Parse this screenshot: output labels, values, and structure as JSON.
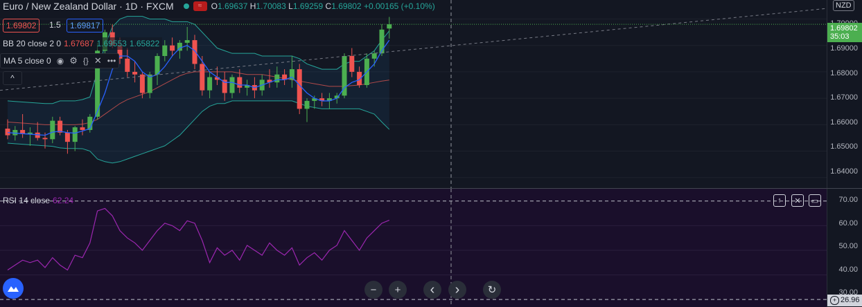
{
  "header": {
    "symbol_title": "Euro / New Zealand Dollar · 1D · FXCM",
    "ohlc_open_label": "O",
    "ohlc_open": "1.69637",
    "ohlc_high_label": "H",
    "ohlc_high": "1.70083",
    "ohlc_low_label": "L",
    "ohlc_low": "1.69259",
    "ohlc_close_label": "C",
    "ohlc_close": "1.69802",
    "ohlc_change": "+0.00165 (+0.10%)"
  },
  "trade": {
    "sell_price": "1.69802",
    "spread": "1.5",
    "buy_price": "1.69817"
  },
  "indicators": {
    "bb_label": "BB 20 close 2 0",
    "bb_val1": "1.67687",
    "bb_val2": "1.69553",
    "bb_val3": "1.65822",
    "ma_label": "MA 5 close 0",
    "rsi_label": "RSI 14 close",
    "rsi_value": "62.24"
  },
  "price_scale": {
    "currency": "NZD",
    "ticks": [
      "1.70000",
      "1.69000",
      "1.68000",
      "1.67000",
      "1.66000",
      "1.65000",
      "1.64000"
    ],
    "current_price": "1.69802",
    "countdown": "35:03"
  },
  "rsi_scale": {
    "ticks": [
      "70.00",
      "60.00",
      "50.00",
      "40.00",
      "30.00"
    ],
    "bottom_value": "26.96"
  },
  "controls": {
    "zoom_out": "−",
    "zoom_in": "+",
    "scroll_left": "‹",
    "scroll_right": "›",
    "reset": "↻",
    "collapse": "^"
  },
  "icons": [
    "eye-icon",
    "gear-icon",
    "braces-icon",
    "close-icon",
    "more-icon",
    "up-arrow-icon",
    "maximize-icon",
    "logo-icon",
    "plus-icon"
  ],
  "colors": {
    "up": "#26a69a",
    "up_candle": "#4caf50",
    "down": "#ef5350",
    "bb_line": "#26a69a",
    "ma_line": "#2962ff",
    "rsi_line": "#9c27b0",
    "bg": "#131722",
    "rsi_bg": "#1a0f2b"
  },
  "chart_data": {
    "type": "line",
    "candles": [
      {
        "o": 1.6585,
        "h": 1.662,
        "l": 1.6545,
        "c": 1.656
      },
      {
        "o": 1.656,
        "h": 1.6595,
        "l": 1.654,
        "c": 1.658
      },
      {
        "o": 1.658,
        "h": 1.664,
        "l": 1.655,
        "c": 1.6565
      },
      {
        "o": 1.6565,
        "h": 1.659,
        "l": 1.652,
        "c": 1.657
      },
      {
        "o": 1.657,
        "h": 1.661,
        "l": 1.654,
        "c": 1.655
      },
      {
        "o": 1.655,
        "h": 1.657,
        "l": 1.651,
        "c": 1.6545
      },
      {
        "o": 1.6545,
        "h": 1.663,
        "l": 1.653,
        "c": 1.6615
      },
      {
        "o": 1.6615,
        "h": 1.663,
        "l": 1.656,
        "c": 1.657
      },
      {
        "o": 1.657,
        "h": 1.658,
        "l": 1.649,
        "c": 1.6535
      },
      {
        "o": 1.6535,
        "h": 1.6595,
        "l": 1.65,
        "c": 1.659
      },
      {
        "o": 1.659,
        "h": 1.662,
        "l": 1.656,
        "c": 1.658
      },
      {
        "o": 1.658,
        "h": 1.664,
        "l": 1.657,
        "c": 1.663
      },
      {
        "o": 1.663,
        "h": 1.691,
        "l": 1.662,
        "c": 1.688
      },
      {
        "o": 1.688,
        "h": 1.696,
        "l": 1.684,
        "c": 1.695
      },
      {
        "o": 1.695,
        "h": 1.698,
        "l": 1.689,
        "c": 1.69
      },
      {
        "o": 1.69,
        "h": 1.693,
        "l": 1.683,
        "c": 1.685
      },
      {
        "o": 1.685,
        "h": 1.689,
        "l": 1.678,
        "c": 1.68
      },
      {
        "o": 1.68,
        "h": 1.684,
        "l": 1.676,
        "c": 1.679
      },
      {
        "o": 1.679,
        "h": 1.68,
        "l": 1.67,
        "c": 1.672
      },
      {
        "o": 1.672,
        "h": 1.68,
        "l": 1.67,
        "c": 1.679
      },
      {
        "o": 1.679,
        "h": 1.687,
        "l": 1.675,
        "c": 1.686
      },
      {
        "o": 1.686,
        "h": 1.692,
        "l": 1.684,
        "c": 1.69
      },
      {
        "o": 1.69,
        "h": 1.693,
        "l": 1.686,
        "c": 1.688
      },
      {
        "o": 1.688,
        "h": 1.692,
        "l": 1.685,
        "c": 1.691
      },
      {
        "o": 1.691,
        "h": 1.697,
        "l": 1.688,
        "c": 1.692
      },
      {
        "o": 1.692,
        "h": 1.694,
        "l": 1.681,
        "c": 1.683
      },
      {
        "o": 1.683,
        "h": 1.686,
        "l": 1.671,
        "c": 1.673
      },
      {
        "o": 1.673,
        "h": 1.68,
        "l": 1.67,
        "c": 1.678
      },
      {
        "o": 1.678,
        "h": 1.682,
        "l": 1.675,
        "c": 1.677
      },
      {
        "o": 1.677,
        "h": 1.68,
        "l": 1.669,
        "c": 1.672
      },
      {
        "o": 1.672,
        "h": 1.679,
        "l": 1.67,
        "c": 1.678
      },
      {
        "o": 1.678,
        "h": 1.681,
        "l": 1.672,
        "c": 1.674
      },
      {
        "o": 1.674,
        "h": 1.677,
        "l": 1.671,
        "c": 1.675
      },
      {
        "o": 1.675,
        "h": 1.678,
        "l": 1.67,
        "c": 1.673
      },
      {
        "o": 1.673,
        "h": 1.679,
        "l": 1.671,
        "c": 1.677
      },
      {
        "o": 1.677,
        "h": 1.681,
        "l": 1.674,
        "c": 1.676
      },
      {
        "o": 1.676,
        "h": 1.682,
        "l": 1.674,
        "c": 1.679
      },
      {
        "o": 1.679,
        "h": 1.681,
        "l": 1.675,
        "c": 1.677
      },
      {
        "o": 1.677,
        "h": 1.686,
        "l": 1.674,
        "c": 1.681
      },
      {
        "o": 1.681,
        "h": 1.683,
        "l": 1.664,
        "c": 1.666
      },
      {
        "o": 1.666,
        "h": 1.67,
        "l": 1.661,
        "c": 1.669
      },
      {
        "o": 1.669,
        "h": 1.671,
        "l": 1.666,
        "c": 1.67
      },
      {
        "o": 1.67,
        "h": 1.672,
        "l": 1.667,
        "c": 1.669
      },
      {
        "o": 1.669,
        "h": 1.672,
        "l": 1.666,
        "c": 1.67
      },
      {
        "o": 1.67,
        "h": 1.672,
        "l": 1.668,
        "c": 1.671
      },
      {
        "o": 1.671,
        "h": 1.687,
        "l": 1.67,
        "c": 1.686
      },
      {
        "o": 1.686,
        "h": 1.689,
        "l": 1.678,
        "c": 1.68
      },
      {
        "o": 1.68,
        "h": 1.682,
        "l": 1.674,
        "c": 1.675
      },
      {
        "o": 1.675,
        "h": 1.687,
        "l": 1.674,
        "c": 1.685
      },
      {
        "o": 1.685,
        "h": 1.688,
        "l": 1.682,
        "c": 1.687
      },
      {
        "o": 1.687,
        "h": 1.698,
        "l": 1.686,
        "c": 1.696
      },
      {
        "o": 1.6964,
        "h": 1.7008,
        "l": 1.6926,
        "c": 1.698
      }
    ],
    "ma_5": [
      1.657,
      1.6568,
      1.6566,
      1.6564,
      1.6562,
      1.656,
      1.6572,
      1.6575,
      1.657,
      1.6568,
      1.6576,
      1.6585,
      1.665,
      1.672,
      1.681,
      1.686,
      1.686,
      1.684,
      1.68,
      1.678,
      1.679,
      1.682,
      1.686,
      1.689,
      1.69,
      1.688,
      1.684,
      1.68,
      1.678,
      1.676,
      1.676,
      1.675,
      1.675,
      1.674,
      1.675,
      1.676,
      1.677,
      1.677,
      1.678,
      1.675,
      1.672,
      1.67,
      1.669,
      1.669,
      1.67,
      1.674,
      1.676,
      1.677,
      1.68,
      1.683,
      1.688,
      1.692
    ],
    "bb_upper": [
      1.669,
      1.6688,
      1.6686,
      1.6684,
      1.6682,
      1.668,
      1.668,
      1.669,
      1.669,
      1.669,
      1.6695,
      1.6705,
      1.68,
      1.69,
      1.697,
      1.7,
      1.701,
      1.701,
      1.701,
      1.7,
      1.7,
      1.7,
      1.699,
      1.699,
      1.699,
      1.698,
      1.695,
      1.692,
      1.689,
      1.688,
      1.687,
      1.687,
      1.687,
      1.687,
      1.686,
      1.686,
      1.686,
      1.686,
      1.686,
      1.685,
      1.683,
      1.682,
      1.681,
      1.681,
      1.681,
      1.683,
      1.684,
      1.684,
      1.686,
      1.688,
      1.692,
      1.6955
    ],
    "bb_basis": [
      1.661,
      1.6608,
      1.6606,
      1.6604,
      1.6602,
      1.66,
      1.66,
      1.6601,
      1.66,
      1.66,
      1.6602,
      1.6608,
      1.662,
      1.664,
      1.666,
      1.668,
      1.6695,
      1.6705,
      1.6715,
      1.6725,
      1.674,
      1.6755,
      1.677,
      1.6785,
      1.6795,
      1.68,
      1.68,
      1.68,
      1.68,
      1.68,
      1.68,
      1.6795,
      1.679,
      1.679,
      1.679,
      1.6785,
      1.678,
      1.6775,
      1.677,
      1.6765,
      1.676,
      1.6755,
      1.675,
      1.6745,
      1.6745,
      1.6745,
      1.6748,
      1.675,
      1.6755,
      1.676,
      1.6765,
      1.6769
    ],
    "bb_lower": [
      1.653,
      1.6528,
      1.6526,
      1.6524,
      1.6522,
      1.652,
      1.6518,
      1.6512,
      1.651,
      1.651,
      1.6509,
      1.65,
      1.647,
      1.646,
      1.6455,
      1.646,
      1.647,
      1.648,
      1.649,
      1.65,
      1.651,
      1.652,
      1.654,
      1.656,
      1.659,
      1.662,
      1.665,
      1.667,
      1.668,
      1.668,
      1.669,
      1.669,
      1.669,
      1.669,
      1.669,
      1.669,
      1.669,
      1.669,
      1.669,
      1.668,
      1.667,
      1.6665,
      1.666,
      1.666,
      1.666,
      1.666,
      1.666,
      1.666,
      1.665,
      1.664,
      1.661,
      1.6582
    ],
    "rsi_14": [
      42,
      44,
      46,
      45,
      46,
      43,
      47,
      44,
      42,
      48,
      47,
      53,
      66,
      67,
      64,
      58,
      55,
      53,
      50,
      54,
      58,
      61,
      60,
      58,
      62,
      61,
      54,
      45,
      51,
      48,
      50,
      46,
      52,
      50,
      48,
      53,
      50,
      48,
      51,
      44,
      47,
      49,
      46,
      50,
      52,
      58,
      54,
      50,
      55,
      58,
      61,
      62.24
    ],
    "price_ylim": [
      1.636,
      1.7072
    ],
    "rsi_ylim": [
      26.96,
      75.0
    ],
    "rsi_levels": [
      70,
      30
    ],
    "xlabel": "",
    "ylabel": ""
  }
}
